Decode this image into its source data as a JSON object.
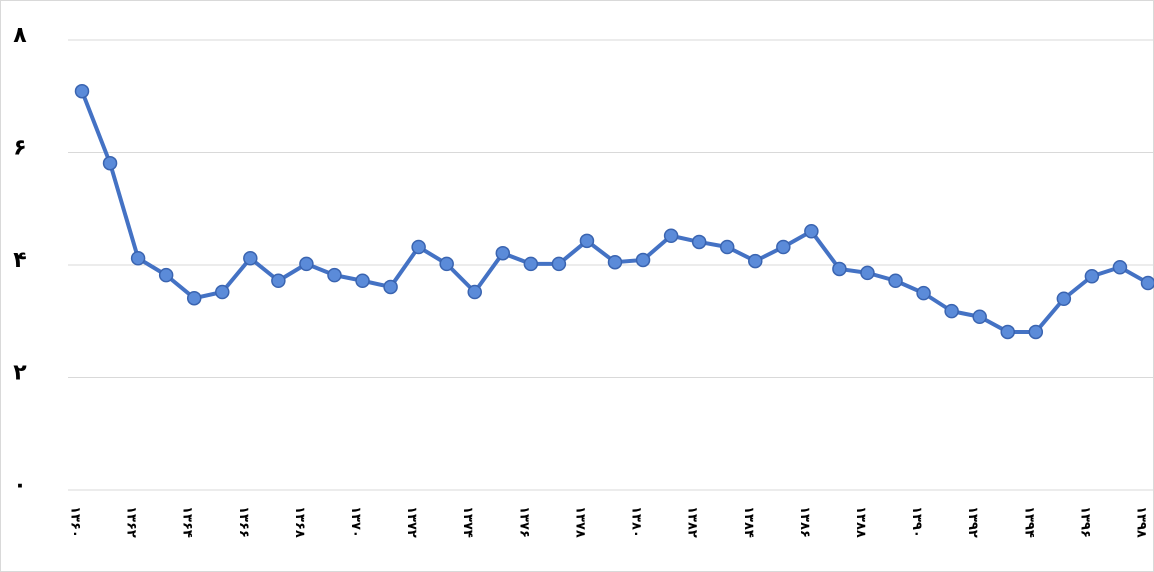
{
  "chart_data": {
    "type": "line",
    "categories": [
      "۱۳۶۰",
      null,
      "۱۳۶۲",
      null,
      "۱۳۶۴",
      null,
      "۱۳۶۶",
      null,
      "۱۳۶۸",
      null,
      "۱۳۷۰",
      null,
      "۱۳۷۲",
      null,
      "۱۳۷۴",
      null,
      "۱۳۷۶",
      null,
      "۱۳۷۸",
      null,
      "۱۳۸۰",
      null,
      "۱۳۸۲",
      null,
      "۱۳۸۴",
      null,
      "۱۳۸۶",
      null,
      "۱۳۸۸",
      null,
      "۱۳۹۰",
      null,
      "۱۳۹۲",
      null,
      "۱۳۹۴",
      null,
      "۱۳۹۶",
      null,
      "۱۳۹۸"
    ],
    "values": [
      7.09,
      5.81,
      4.12,
      3.82,
      3.41,
      3.52,
      4.12,
      3.72,
      4.02,
      3.82,
      3.72,
      3.61,
      4.32,
      4.02,
      3.52,
      4.21,
      4.02,
      4.02,
      4.43,
      4.05,
      4.09,
      4.52,
      4.41,
      4.32,
      4.07,
      4.32,
      4.6,
      3.93,
      3.86,
      3.72,
      3.5,
      3.18,
      3.08,
      2.81,
      2.81,
      3.4,
      3.8,
      3.96,
      3.68
    ],
    "color": "#4472c4",
    "ylim": [
      0,
      8
    ],
    "yticks": [
      {
        "value": 0,
        "label": "۰"
      },
      {
        "value": 2,
        "label": "۲"
      },
      {
        "value": 4,
        "label": "۴"
      },
      {
        "value": 6,
        "label": "۶"
      },
      {
        "value": 8,
        "label": "۸"
      }
    ],
    "grid": true
  }
}
